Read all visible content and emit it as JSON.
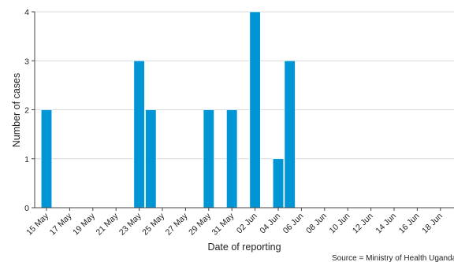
{
  "chart_data": {
    "type": "bar",
    "xlabel": "Date of reporting",
    "ylabel": "Number of cases",
    "ylim": [
      0,
      4
    ],
    "yticks": [
      0,
      1,
      2,
      3,
      4
    ],
    "grid": "horizontal",
    "bar_color": "#0096d6",
    "x_start": "2022-05-15",
    "x_end": "2022-06-18",
    "x_tick_labels": [
      "15 May",
      "17 May",
      "19 May",
      "21 May",
      "23 May",
      "25 May",
      "27 May",
      "29 May",
      "31 May",
      "02 Jun",
      "04 Jun",
      "06 Jun",
      "08 Jun",
      "10 Jun",
      "12 Jun",
      "14 Jun",
      "16 Jun",
      "18 Jun"
    ],
    "bars": [
      {
        "date": "15 May",
        "value": 2
      },
      {
        "date": "23 May",
        "value": 3
      },
      {
        "date": "24 May",
        "value": 2
      },
      {
        "date": "29 May",
        "value": 2
      },
      {
        "date": "31 May",
        "value": 2
      },
      {
        "date": "02 Jun",
        "value": 4
      },
      {
        "date": "04 Jun",
        "value": 1
      },
      {
        "date": "05 Jun",
        "value": 3
      }
    ],
    "source": "Source = Ministry of Health Uganda"
  }
}
